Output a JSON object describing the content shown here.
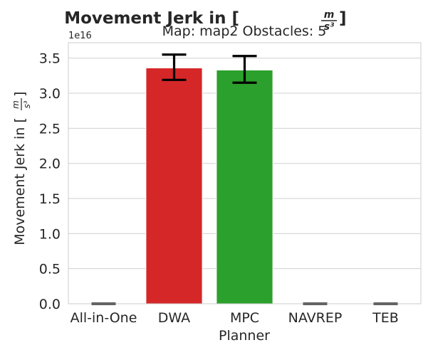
{
  "chart_data": {
    "type": "bar",
    "title": "Movement Jerk in [m/s³]",
    "title_main": "Movement Jerk in [",
    "title_frac_num": "m",
    "title_frac_den": "s³",
    "title_close": "]",
    "subtitle": "Map: map2 Obstacles: 5",
    "xlabel": "Planner",
    "ylabel": "Movement Jerk in [m/s³]",
    "ylabel_main": "Movement Jerk in [",
    "ylabel_frac_num": "m",
    "ylabel_frac_den": "s³",
    "ylabel_close": "]",
    "offset_text": "1e16",
    "categories": [
      "All-in-One",
      "DWA",
      "MPC",
      "NAVREP",
      "TEB"
    ],
    "values": [
      0.0,
      3.36,
      3.33,
      0.0,
      0.0
    ],
    "error_low": [
      0.0,
      3.19,
      3.15,
      0.0,
      0.0
    ],
    "error_high": [
      0.0,
      3.55,
      3.53,
      0.0,
      0.0
    ],
    "colors": [
      "#1f77b4",
      "#d62728",
      "#2ca02c",
      "#9467bd",
      "#8c564b"
    ],
    "ylim": [
      0,
      3.72
    ],
    "yticks": [
      0.0,
      0.5,
      1.0,
      1.5,
      2.0,
      2.5,
      3.0,
      3.5
    ],
    "ytick_labels": [
      "0.0",
      "0.5",
      "1.0",
      "1.5",
      "2.0",
      "2.5",
      "3.0",
      "3.5"
    ],
    "grid": true
  }
}
